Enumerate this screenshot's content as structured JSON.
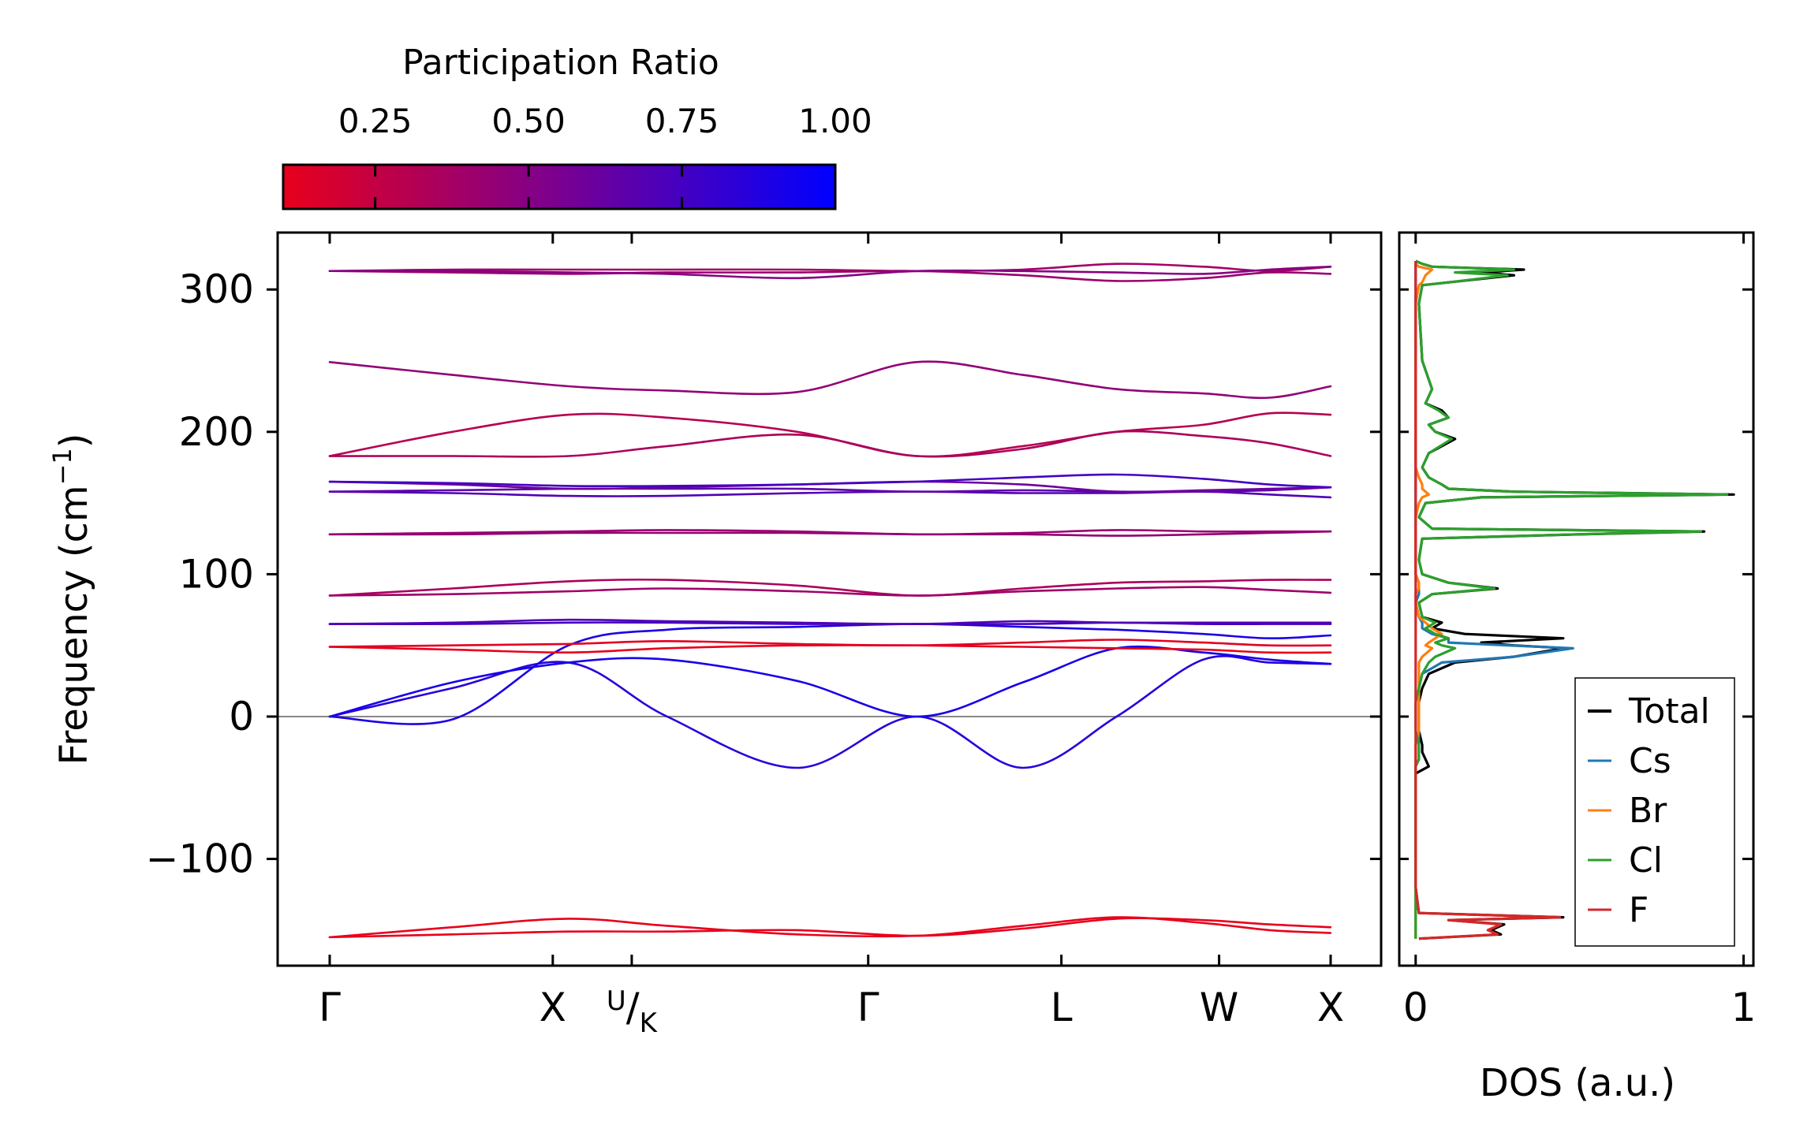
{
  "chart_data": [
    {
      "type": "line",
      "name": "phonon-dispersion",
      "ylabel": "Frequency (cm",
      "ylabel_sup": "−1",
      "ylabel_close": ")",
      "ylim": [
        -175,
        340
      ],
      "yticks": [
        -100,
        0,
        100,
        200,
        300
      ],
      "ytick_labels": [
        "−100",
        "0",
        "100",
        "200",
        "300"
      ],
      "kpoints": [
        {
          "label": "Γ",
          "pos": 0.0
        },
        {
          "label": "X",
          "pos": 1.0
        },
        {
          "label": "U/K",
          "pos": 1.354,
          "sup": "U",
          "sub": "K"
        },
        {
          "label": "Γ",
          "pos": 2.414
        },
        {
          "label": "L",
          "pos": 3.28
        },
        {
          "label": "W",
          "pos": 3.987
        },
        {
          "label": "X",
          "pos": 4.487
        }
      ],
      "zero_line": 0,
      "colorbar": {
        "title": "Participation Ratio",
        "range": [
          0.1,
          1.0
        ],
        "ticks": [
          0.25,
          0.5,
          0.75,
          1.0
        ],
        "tick_labels": [
          "0.25",
          "0.50",
          "0.75",
          "1.00"
        ],
        "low_color": "#e8001c",
        "high_color": "#0000ff"
      },
      "series": [
        {
          "name": "band-1",
          "pr": 0.07,
          "values": [
            -155,
            -148,
            -142,
            -147,
            -153,
            -154,
            -147,
            -141,
            -145,
            -150,
            -152
          ]
        },
        {
          "name": "band-2",
          "pr": 0.07,
          "values": [
            -155,
            -153,
            -151,
            -151,
            -150,
            -154,
            -149,
            -142,
            -143,
            -146,
            -148
          ]
        },
        {
          "name": "band-3",
          "pr": 0.85,
          "values": [
            0,
            20,
            38,
            0,
            -36,
            0,
            -36,
            0,
            40,
            38,
            37
          ]
        },
        {
          "name": "band-4",
          "pr": 0.92,
          "values": [
            0,
            24,
            38,
            40,
            25,
            0,
            24,
            48,
            45,
            40,
            37
          ]
        },
        {
          "name": "band-5",
          "pr": 0.9,
          "values": [
            0,
            -2,
            50,
            61,
            63,
            65,
            63,
            61,
            58,
            55,
            57
          ]
        },
        {
          "name": "band-6",
          "pr": 0.1,
          "values": [
            49,
            47,
            45,
            48,
            50,
            50,
            49,
            48,
            47,
            45,
            45
          ]
        },
        {
          "name": "band-7",
          "pr": 0.12,
          "values": [
            49,
            50,
            51,
            53,
            51,
            50,
            52,
            54,
            52,
            50,
            50
          ]
        },
        {
          "name": "band-8",
          "pr": 0.75,
          "values": [
            65,
            65,
            66,
            66,
            65,
            65,
            65,
            66,
            65,
            65,
            65
          ]
        },
        {
          "name": "band-9",
          "pr": 0.7,
          "values": [
            65,
            66,
            68,
            67,
            66,
            65,
            67,
            66,
            66,
            66,
            66
          ]
        },
        {
          "name": "band-10",
          "pr": 0.35,
          "values": [
            85,
            90,
            95,
            96,
            92,
            85,
            90,
            94,
            95,
            96,
            96
          ]
        },
        {
          "name": "band-11",
          "pr": 0.4,
          "values": [
            85,
            86,
            88,
            90,
            88,
            85,
            88,
            90,
            91,
            89,
            87
          ]
        },
        {
          "name": "band-12",
          "pr": 0.42,
          "values": [
            128,
            129,
            130,
            131,
            130,
            128,
            129,
            131,
            130,
            130,
            130
          ]
        },
        {
          "name": "band-13",
          "pr": 0.45,
          "values": [
            128,
            128,
            129,
            129,
            129,
            128,
            128,
            127,
            128,
            129,
            130
          ]
        },
        {
          "name": "band-14",
          "pr": 0.7,
          "values": [
            158,
            157,
            155,
            155,
            157,
            158,
            157,
            157,
            158,
            156,
            154
          ]
        },
        {
          "name": "band-15",
          "pr": 0.65,
          "values": [
            158,
            159,
            160,
            160,
            160,
            158,
            159,
            158,
            158,
            159,
            161
          ]
        },
        {
          "name": "band-16",
          "pr": 0.6,
          "values": [
            165,
            163,
            160,
            161,
            163,
            165,
            163,
            158,
            159,
            160,
            161
          ]
        },
        {
          "name": "band-17",
          "pr": 0.75,
          "values": [
            165,
            164,
            162,
            162,
            163,
            165,
            168,
            170,
            167,
            163,
            161
          ]
        },
        {
          "name": "band-18",
          "pr": 0.3,
          "values": [
            183,
            200,
            212,
            210,
            200,
            183,
            190,
            200,
            205,
            213,
            212
          ]
        },
        {
          "name": "band-19",
          "pr": 0.35,
          "values": [
            183,
            183,
            183,
            190,
            198,
            183,
            188,
            200,
            197,
            192,
            183
          ]
        },
        {
          "name": "band-20",
          "pr": 0.45,
          "values": [
            249,
            240,
            232,
            229,
            228,
            249,
            240,
            230,
            227,
            224,
            232
          ]
        },
        {
          "name": "band-21",
          "pr": 0.38,
          "values": [
            313,
            314,
            314,
            314,
            314,
            313,
            314,
            318,
            316,
            313,
            316
          ]
        },
        {
          "name": "band-22",
          "pr": 0.42,
          "values": [
            313,
            312,
            311,
            312,
            312,
            313,
            310,
            306,
            308,
            312,
            311
          ]
        },
        {
          "name": "band-23",
          "pr": 0.5,
          "values": [
            313,
            313,
            312,
            311,
            308,
            313,
            313,
            312,
            311,
            314,
            316
          ]
        }
      ]
    },
    {
      "type": "line",
      "name": "phonon-dos",
      "xlabel": "DOS (a.u.)",
      "xlim": [
        -0.05,
        1.03
      ],
      "xticks": [
        0,
        1
      ],
      "xtick_labels": [
        "0",
        "1"
      ],
      "ylim": [
        -175,
        340
      ],
      "freq": [
        -156,
        -153,
        -150,
        -146,
        -143,
        -141,
        -138,
        -120,
        -100,
        -80,
        -60,
        -45,
        -40,
        -35,
        -30,
        -25,
        -20,
        -10,
        0,
        10,
        20,
        30,
        38,
        42,
        46,
        48,
        50,
        52,
        55,
        58,
        62,
        66,
        70,
        80,
        86,
        90,
        94,
        100,
        110,
        125,
        128,
        130,
        132,
        140,
        150,
        154,
        156,
        158,
        160,
        163,
        168,
        175,
        185,
        195,
        200,
        205,
        210,
        215,
        220,
        230,
        250,
        290,
        303,
        305,
        310,
        312,
        314,
        316,
        318,
        320
      ],
      "legend": {
        "location": "lower right"
      },
      "series": [
        {
          "name": "Total",
          "color": "#000000",
          "values": [
            0.01,
            0.26,
            0.23,
            0.27,
            0.1,
            0.45,
            0.01,
            0,
            0,
            0,
            0,
            0,
            0,
            0.04,
            0.03,
            0.02,
            0.02,
            0.01,
            0.01,
            0.01,
            0.02,
            0.04,
            0.12,
            0.3,
            0.4,
            0.46,
            0.3,
            0.2,
            0.45,
            0.15,
            0.05,
            0.08,
            0.02,
            0.01,
            0.05,
            0.25,
            0.1,
            0.02,
            0.01,
            0.02,
            0.5,
            0.88,
            0.05,
            0.01,
            0.03,
            0.2,
            0.97,
            0.3,
            0.1,
            0.08,
            0.04,
            0.02,
            0.04,
            0.12,
            0.06,
            0.04,
            0.1,
            0.08,
            0.03,
            0.05,
            0.02,
            0.01,
            0.02,
            0.1,
            0.3,
            0.2,
            0.33,
            0.05,
            0.02,
            0
          ]
        },
        {
          "name": "Cs",
          "color": "#1f77b4",
          "values": [
            0,
            0,
            0,
            0,
            0,
            0,
            0,
            0,
            0,
            0,
            0,
            0,
            0,
            0,
            0.01,
            0.01,
            0.01,
            0.01,
            0.01,
            0.01,
            0.01,
            0.02,
            0.08,
            0.3,
            0.42,
            0.48,
            0.28,
            0.1,
            0.1,
            0.05,
            0.02,
            0.02,
            0.01,
            0,
            0.01,
            0.01,
            0.01,
            0,
            0,
            0,
            0,
            0,
            0,
            0,
            0,
            0,
            0,
            0,
            0,
            0,
            0,
            0,
            0,
            0,
            0,
            0,
            0,
            0,
            0,
            0,
            0,
            0,
            0,
            0,
            0,
            0,
            0,
            0,
            0,
            0
          ]
        },
        {
          "name": "Br",
          "color": "#ff7f0e",
          "values": [
            0,
            0,
            0,
            0,
            0,
            0,
            0,
            0,
            0,
            0,
            0,
            0,
            0,
            0,
            0,
            0,
            0,
            0.01,
            0.01,
            0.01,
            0.01,
            0.01,
            0.01,
            0.02,
            0.04,
            0.05,
            0.03,
            0.04,
            0.06,
            0.08,
            0.05,
            0.03,
            0.01,
            0,
            0,
            0.01,
            0.01,
            0,
            0,
            0,
            0,
            0,
            0,
            0,
            0.01,
            0.02,
            0.04,
            0.03,
            0.02,
            0.02,
            0.01,
            0,
            0,
            0,
            0,
            0,
            0,
            0,
            0,
            0,
            0,
            0,
            0.01,
            0.02,
            0.03,
            0.04,
            0.05,
            0.01,
            0,
            0
          ]
        },
        {
          "name": "Cl",
          "color": "#2ca02c",
          "values": [
            0,
            0,
            0,
            0,
            0,
            0,
            0,
            0,
            0,
            0,
            0,
            0,
            0,
            0,
            0.01,
            0.01,
            0.01,
            0,
            0,
            0,
            0.01,
            0.02,
            0.04,
            0.06,
            0.1,
            0.12,
            0.08,
            0.06,
            0.1,
            0.06,
            0.03,
            0.06,
            0.02,
            0.01,
            0.05,
            0.24,
            0.1,
            0.02,
            0.01,
            0.02,
            0.49,
            0.87,
            0.05,
            0.01,
            0.03,
            0.2,
            0.95,
            0.3,
            0.1,
            0.08,
            0.04,
            0.02,
            0.04,
            0.11,
            0.06,
            0.04,
            0.1,
            0.07,
            0.03,
            0.05,
            0.02,
            0.01,
            0.02,
            0.1,
            0.28,
            0.12,
            0.3,
            0.05,
            0.02,
            0
          ]
        },
        {
          "name": "F",
          "color": "#d62728",
          "values": [
            0.01,
            0.25,
            0.22,
            0.26,
            0.1,
            0.44,
            0.01,
            0,
            0,
            0,
            0,
            0,
            0,
            0,
            0,
            0,
            0,
            0,
            0,
            0,
            0,
            0,
            0,
            0,
            0,
            0,
            0,
            0,
            0,
            0,
            0,
            0,
            0,
            0,
            0,
            0,
            0,
            0,
            0,
            0,
            0,
            0,
            0,
            0,
            0,
            0,
            0,
            0,
            0,
            0,
            0,
            0,
            0,
            0,
            0,
            0,
            0,
            0,
            0,
            0,
            0,
            0,
            0,
            0,
            0,
            0,
            0,
            0,
            0,
            0
          ]
        }
      ]
    }
  ]
}
